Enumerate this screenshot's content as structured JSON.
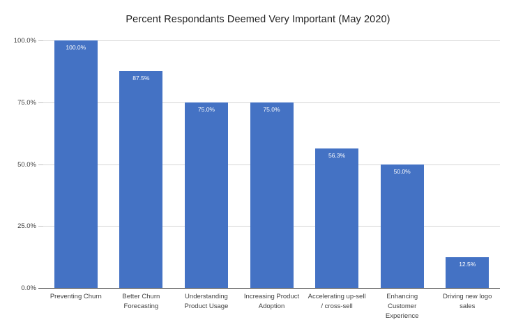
{
  "chart_data": {
    "type": "bar",
    "title": "Percent Respondants Deemed Very Important (May 2020)",
    "categories": [
      "Preventing Churn",
      "Better Churn Forecasting",
      "Understanding Product Usage",
      "Increasing Product Adoption",
      "Accelerating up-sell / cross-sell",
      "Enhancing Customer Experience",
      "Driving new logo sales"
    ],
    "values": [
      100.0,
      87.5,
      75.0,
      75.0,
      56.3,
      50.0,
      12.5
    ],
    "data_labels": [
      "100.0%",
      "87.5%",
      "75.0%",
      "75.0%",
      "56.3%",
      "50.0%",
      "12.5%"
    ],
    "y_ticks": [
      {
        "label": "100.0%",
        "value": 100
      },
      {
        "label": "75.0%",
        "value": 75
      },
      {
        "label": "50.0%",
        "value": 50
      },
      {
        "label": "25.0%",
        "value": 25
      },
      {
        "label": "0.0%",
        "value": 0
      }
    ],
    "ylim": [
      0,
      100
    ],
    "xlabel": "",
    "ylabel": "",
    "grid": true,
    "legend": false,
    "bar_color": "#4472C4",
    "data_label_color": "#FFFFFF",
    "gridline_color": "#D6D6D6",
    "axis_line_color": "#333333"
  }
}
